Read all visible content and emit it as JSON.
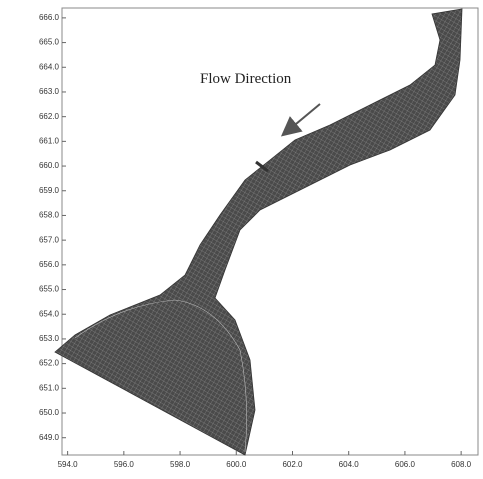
{
  "chart_data": {
    "type": "mesh",
    "annotation": "Flow Direction",
    "xlim": [
      593.8,
      608.6
    ],
    "ylim": [
      648.3,
      666.4
    ],
    "xticks": [
      {
        "value": 594,
        "label": "594.0"
      },
      {
        "value": 596,
        "label": "596.0"
      },
      {
        "value": 598,
        "label": "598.0"
      },
      {
        "value": 600,
        "label": "600.0"
      },
      {
        "value": 602,
        "label": "602.0"
      },
      {
        "value": 604,
        "label": "604.0"
      },
      {
        "value": 606,
        "label": "606.0"
      },
      {
        "value": 608,
        "label": "608.0"
      }
    ],
    "yticks": [
      {
        "value": 649,
        "label": "649.0"
      },
      {
        "value": 650,
        "label": "650.0"
      },
      {
        "value": 651,
        "label": "651.0"
      },
      {
        "value": 652,
        "label": "652.0"
      },
      {
        "value": 653,
        "label": "653.0"
      },
      {
        "value": 654,
        "label": "654.0"
      },
      {
        "value": 655,
        "label": "655.0"
      },
      {
        "value": 656,
        "label": "656.0"
      },
      {
        "value": 657,
        "label": "657.0"
      },
      {
        "value": 658,
        "label": "658.0"
      },
      {
        "value": 659,
        "label": "659.0"
      },
      {
        "value": 660,
        "label": "660.0"
      },
      {
        "value": 661,
        "label": "661.0"
      },
      {
        "value": 662,
        "label": "662.0"
      },
      {
        "value": 663,
        "label": "663.0"
      },
      {
        "value": 664,
        "label": "664.0"
      },
      {
        "value": 665,
        "label": "665.0"
      },
      {
        "value": 666,
        "label": "666.0"
      }
    ]
  }
}
